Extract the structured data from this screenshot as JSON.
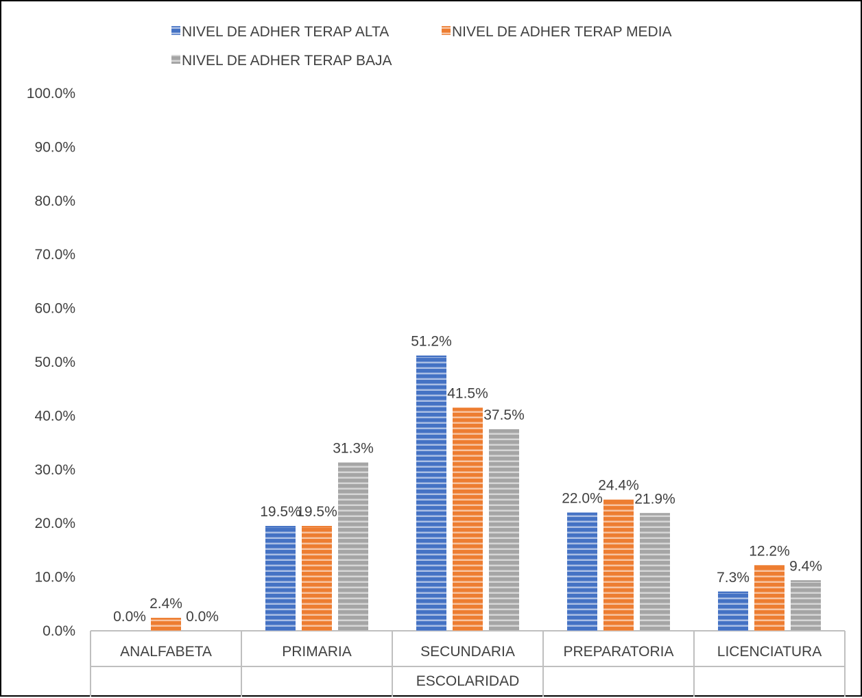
{
  "chart_data": {
    "type": "bar",
    "title": "",
    "xlabel": "ESCOLARIDAD",
    "ylabel": "",
    "categories": [
      "ANALFABETA",
      "PRIMARIA",
      "SECUNDARIA",
      "PREPARATORIA",
      "LICENCIATURA"
    ],
    "series": [
      {
        "name": "NIVEL DE ADHER TERAP ALTA",
        "color": "#4472c4",
        "values": [
          0.0,
          19.5,
          51.2,
          22.0,
          7.3
        ],
        "labels": [
          "0.0%",
          "19.5%",
          "51.2%",
          "22.0%",
          "7.3%"
        ]
      },
      {
        "name": "NIVEL DE ADHER TERAP MEDIA",
        "color": "#ed7d31",
        "values": [
          2.4,
          19.5,
          41.5,
          24.4,
          12.2
        ],
        "labels": [
          "2.4%",
          "19.5%",
          "41.5%",
          "24.4%",
          "12.2%"
        ]
      },
      {
        "name": "NIVEL DE ADHER TERAP BAJA",
        "color": "#a5a5a5",
        "values": [
          0.0,
          31.3,
          37.5,
          21.9,
          9.4
        ],
        "labels": [
          "0.0%",
          "31.3%",
          "37.5%",
          "21.9%",
          "9.4%"
        ]
      }
    ],
    "ylim": [
      0,
      100
    ],
    "yticks": [
      "0.0%",
      "10.0%",
      "20.0%",
      "30.0%",
      "40.0%",
      "50.0%",
      "60.0%",
      "70.0%",
      "80.0%",
      "90.0%",
      "100.0%"
    ],
    "grid": false,
    "legend": "top",
    "bar_pattern": "horizontal-stripes"
  }
}
